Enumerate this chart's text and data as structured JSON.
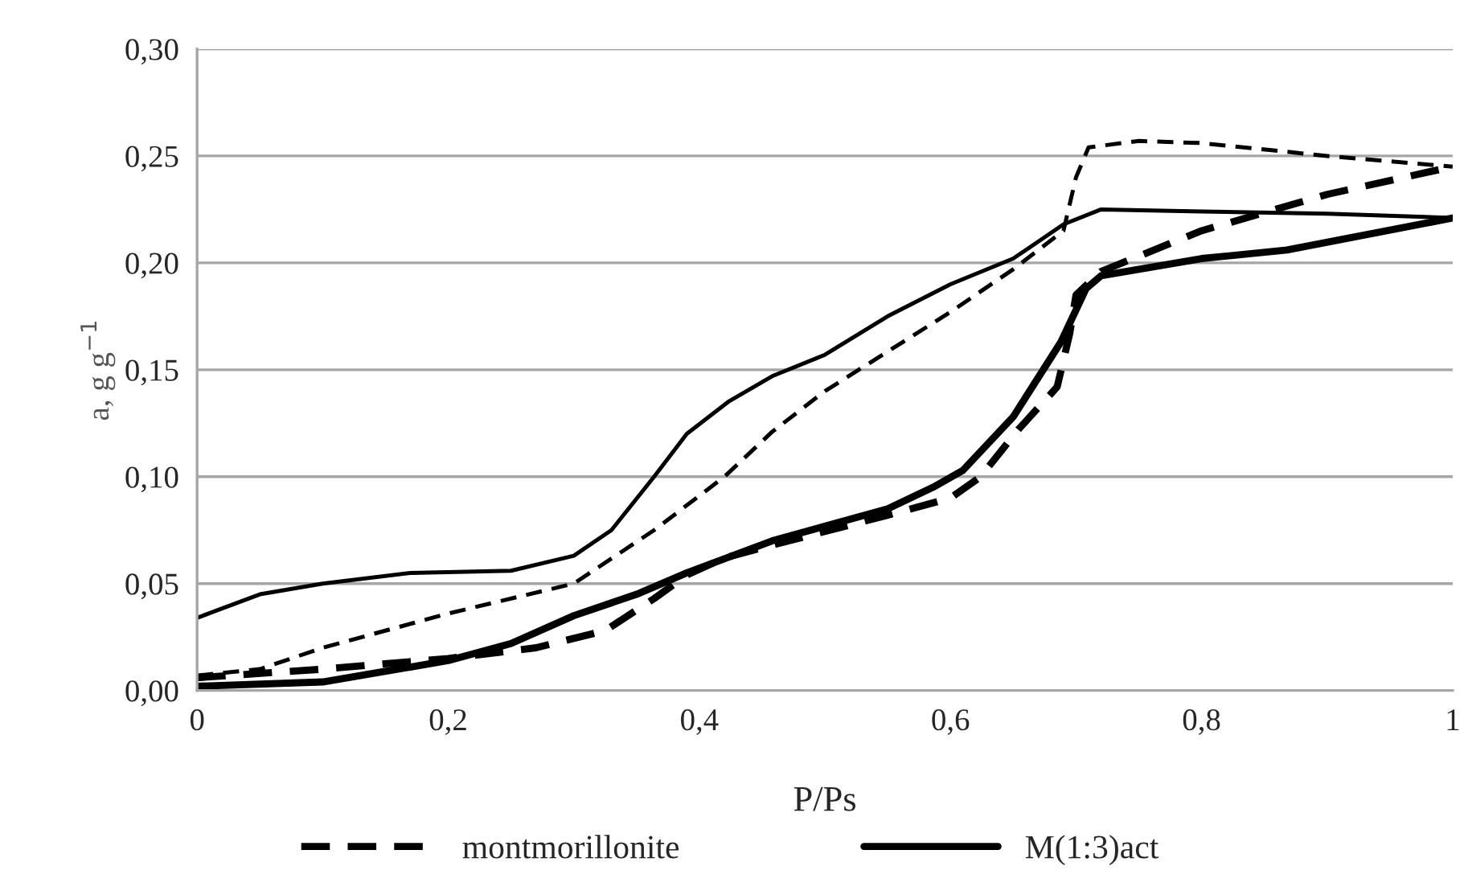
{
  "chart_data": {
    "type": "line",
    "xlabel": "P/Ps",
    "ylabel": "a, g g$^{−1}$",
    "xlim": [
      0,
      1
    ],
    "xticks": [
      {
        "value": 0,
        "label": "0"
      },
      {
        "value": 0.2,
        "label": "0,2"
      },
      {
        "value": 0.4,
        "label": "0,4"
      },
      {
        "value": 0.6,
        "label": "0,6"
      },
      {
        "value": 0.8,
        "label": "0,8"
      },
      {
        "value": 1,
        "label": "1"
      }
    ],
    "ylim": [
      0,
      0.3
    ],
    "yticks": [
      {
        "value": 0,
        "label": "0,00"
      },
      {
        "value": 0.05,
        "label": "0,05"
      },
      {
        "value": 0.1,
        "label": "0,10"
      },
      {
        "value": 0.15,
        "label": "0,15"
      },
      {
        "value": 0.2,
        "label": "0,20"
      },
      {
        "value": 0.25,
        "label": "0,25"
      },
      {
        "value": 0.3,
        "label": "0,30"
      }
    ],
    "grid": "y",
    "legend": "bottom",
    "marker": "none",
    "series": [
      {
        "name": "montmorillonite",
        "color": "#000000",
        "line_style": "dashed",
        "x": [
          0,
          0.1,
          0.2,
          0.27,
          0.325,
          0.364,
          0.39,
          0.42,
          0.458,
          0.55,
          0.6,
          0.624,
          0.654,
          0.685,
          0.695,
          0.7,
          0.72,
          0.8,
          0.9,
          1
        ],
        "values": [
          0.006,
          0.01,
          0.015,
          0.02,
          0.028,
          0.043,
          0.054,
          0.062,
          0.068,
          0.082,
          0.09,
          0.1,
          0.122,
          0.142,
          0.167,
          0.185,
          0.196,
          0.215,
          0.232,
          0.245
        ]
      },
      {
        "color": "#000000",
        "line_style": "dashed",
        "x": [
          0,
          0.05,
          0.1,
          0.2,
          0.3,
          0.364,
          0.42,
          0.458,
          0.5,
          0.6,
          0.65,
          0.69,
          0.7,
          0.71,
          0.75,
          0.8,
          0.9,
          1
        ],
        "values": [
          0.007,
          0.01,
          0.02,
          0.036,
          0.05,
          0.075,
          0.1,
          0.121,
          0.14,
          0.177,
          0.197,
          0.215,
          0.24,
          0.254,
          0.257,
          0.256,
          0.25,
          0.245
        ]
      },
      {
        "name": "M(1:3)act",
        "color": "#000000",
        "line_style": "solid",
        "x": [
          0,
          0.1,
          0.2,
          0.25,
          0.3,
          0.35,
          0.39,
          0.458,
          0.55,
          0.586,
          0.61,
          0.65,
          0.688,
          0.708,
          0.72,
          0.8,
          0.868,
          1
        ],
        "values": [
          0.002,
          0.004,
          0.014,
          0.022,
          0.035,
          0.045,
          0.055,
          0.07,
          0.085,
          0.095,
          0.103,
          0.128,
          0.163,
          0.188,
          0.194,
          0.202,
          0.206,
          0.221
        ]
      },
      {
        "color": "#000000",
        "line_style": "solid",
        "x": [
          0,
          0.05,
          0.1,
          0.17,
          0.25,
          0.3,
          0.33,
          0.364,
          0.39,
          0.423,
          0.458,
          0.5,
          0.55,
          0.6,
          0.65,
          0.69,
          0.72,
          0.8,
          0.9,
          1
        ],
        "values": [
          0.034,
          0.045,
          0.05,
          0.055,
          0.056,
          0.063,
          0.075,
          0.1,
          0.12,
          0.135,
          0.147,
          0.157,
          0.175,
          0.19,
          0.202,
          0.218,
          0.225,
          0.224,
          0.223,
          0.221
        ]
      }
    ]
  }
}
